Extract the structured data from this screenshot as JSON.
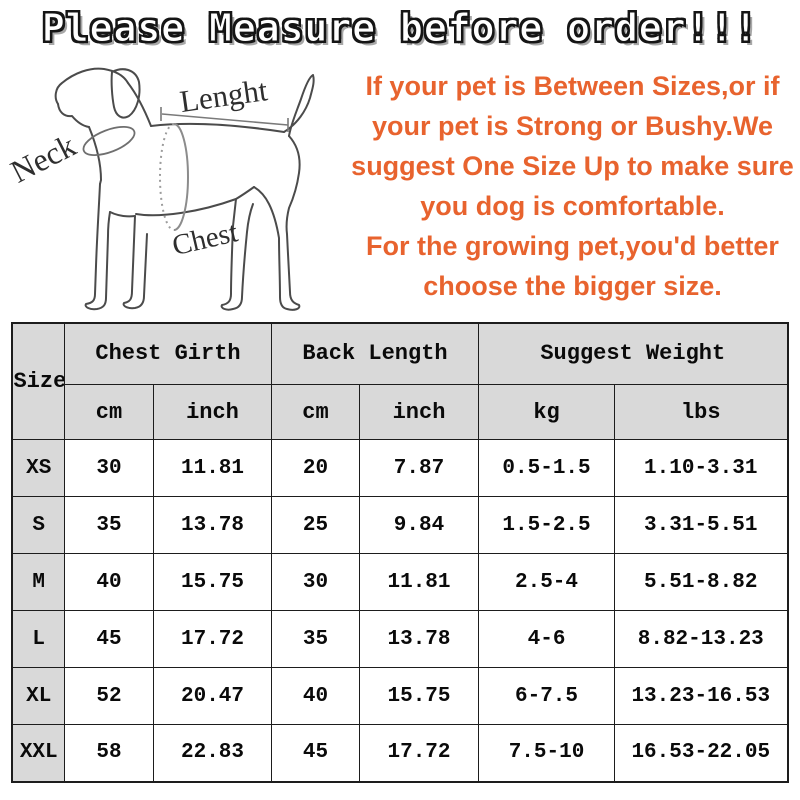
{
  "title": "Please Measure before order!!!",
  "diagram": {
    "neck_label": "Neck",
    "length_label": "Lenght",
    "chest_label": "Chest"
  },
  "notice": {
    "lines": [
      "If your pet is Between Sizes,or if",
      "your pet is Strong or Bushy.We",
      "suggest One Size Up to make sure",
      "you dog is comfortable.",
      "For the growing pet,you'd better",
      "choose the bigger size."
    ]
  },
  "size_table": {
    "col_size": "Size",
    "col_chest_girth": "Chest Girth",
    "col_back_length": "Back Length",
    "col_suggest_weight": "Suggest Weight",
    "units": [
      "cm",
      "inch",
      "cm",
      "inch",
      "kg",
      "lbs"
    ],
    "rows": [
      {
        "size": "XS",
        "chest_cm": "30",
        "chest_inch": "11.81",
        "back_cm": "20",
        "back_inch": "7.87",
        "weight_kg": "0.5-1.5",
        "weight_lbs": "1.10-3.31"
      },
      {
        "size": "S",
        "chest_cm": "35",
        "chest_inch": "13.78",
        "back_cm": "25",
        "back_inch": "9.84",
        "weight_kg": "1.5-2.5",
        "weight_lbs": "3.31-5.51"
      },
      {
        "size": "M",
        "chest_cm": "40",
        "chest_inch": "15.75",
        "back_cm": "30",
        "back_inch": "11.81",
        "weight_kg": "2.5-4",
        "weight_lbs": "5.51-8.82"
      },
      {
        "size": "L",
        "chest_cm": "45",
        "chest_inch": "17.72",
        "back_cm": "35",
        "back_inch": "13.78",
        "weight_kg": "4-6",
        "weight_lbs": "8.82-13.23"
      },
      {
        "size": "XL",
        "chest_cm": "52",
        "chest_inch": "20.47",
        "back_cm": "40",
        "back_inch": "15.75",
        "weight_kg": "6-7.5",
        "weight_lbs": "13.23-16.53"
      },
      {
        "size": "XXL",
        "chest_cm": "58",
        "chest_inch": "22.83",
        "back_cm": "45",
        "back_inch": "17.72",
        "weight_kg": "7.5-10",
        "weight_lbs": "16.53-22.05"
      }
    ]
  },
  "colors": {
    "accent_orange": "#e8632e",
    "header_gray": "#d9d9d9",
    "table_border": "#1d1d1d"
  }
}
